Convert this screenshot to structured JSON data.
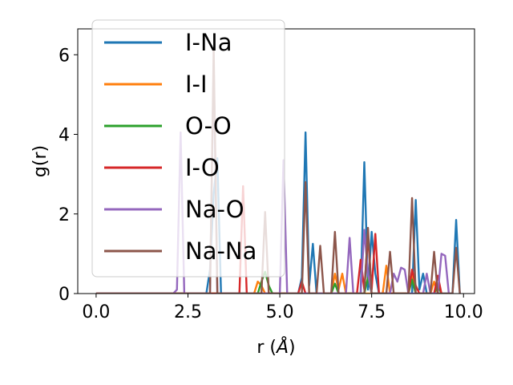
{
  "chart_data": {
    "type": "line",
    "xlabel": "r",
    "xlabel_unit": "Å",
    "ylabel": "g(r)",
    "xlim": [
      -0.5,
      10.3
    ],
    "ylim": [
      0,
      6.65
    ],
    "xticks": [
      0.0,
      2.5,
      5.0,
      7.5,
      10.0
    ],
    "xtick_labels": [
      "0.0",
      "2.5",
      "5.0",
      "7.5",
      "10.0"
    ],
    "yticks": [
      0,
      2,
      4,
      6
    ],
    "ytick_labels": [
      "0",
      "2",
      "4",
      "6"
    ],
    "grid": false,
    "legend_position": "top-left",
    "series": [
      {
        "name": "I-Na",
        "color": "#1f77b4",
        "points": [
          [
            0,
            0
          ],
          [
            3.0,
            0
          ],
          [
            3.1,
            0.6
          ],
          [
            3.2,
            2.5
          ],
          [
            3.3,
            3.4
          ],
          [
            3.4,
            0
          ],
          [
            5.5,
            0
          ],
          [
            5.6,
            0.4
          ],
          [
            5.7,
            4.05
          ],
          [
            5.8,
            0.2
          ],
          [
            5.9,
            1.25
          ],
          [
            6.0,
            0
          ],
          [
            7.2,
            0
          ],
          [
            7.3,
            3.3
          ],
          [
            7.4,
            0.1
          ],
          [
            7.5,
            1.55
          ],
          [
            7.6,
            0.5
          ],
          [
            7.7,
            0
          ],
          [
            8.6,
            0
          ],
          [
            8.7,
            2.35
          ],
          [
            8.8,
            0.1
          ],
          [
            8.9,
            0.5
          ],
          [
            9.0,
            0
          ],
          [
            9.7,
            0
          ],
          [
            9.8,
            1.85
          ],
          [
            9.9,
            0
          ]
        ]
      },
      {
        "name": "I-I",
        "color": "#ff7f0e",
        "points": [
          [
            0,
            0
          ],
          [
            4.3,
            0
          ],
          [
            4.4,
            0.3
          ],
          [
            4.5,
            0.2
          ],
          [
            4.6,
            0
          ],
          [
            6.4,
            0
          ],
          [
            6.5,
            0.5
          ],
          [
            6.6,
            0.1
          ],
          [
            6.7,
            0.5
          ],
          [
            6.8,
            0
          ],
          [
            7.8,
            0
          ],
          [
            7.9,
            0.7
          ],
          [
            8.0,
            0
          ],
          [
            8.5,
            0
          ],
          [
            8.6,
            0.55
          ],
          [
            8.7,
            0
          ],
          [
            9.1,
            0
          ],
          [
            9.2,
            0.3
          ],
          [
            9.3,
            0
          ]
        ]
      },
      {
        "name": "O-O",
        "color": "#2ca02c",
        "points": [
          [
            0,
            0
          ],
          [
            4.4,
            0
          ],
          [
            4.5,
            0.3
          ],
          [
            4.6,
            0.55
          ],
          [
            4.7,
            0.2
          ],
          [
            4.8,
            0
          ],
          [
            6.4,
            0
          ],
          [
            6.5,
            0.25
          ],
          [
            6.6,
            0
          ],
          [
            7.3,
            0
          ],
          [
            7.4,
            0.4
          ],
          [
            7.5,
            0
          ],
          [
            8.5,
            0
          ],
          [
            8.6,
            0.35
          ],
          [
            8.7,
            0
          ],
          [
            9.2,
            0
          ],
          [
            9.3,
            0.2
          ],
          [
            9.4,
            0
          ]
        ]
      },
      {
        "name": "I-O",
        "color": "#d62728",
        "points": [
          [
            0,
            0
          ],
          [
            3.9,
            0
          ],
          [
            4.0,
            2.7
          ],
          [
            4.1,
            0
          ],
          [
            5.5,
            0
          ],
          [
            5.6,
            0.3
          ],
          [
            5.7,
            0
          ],
          [
            7.1,
            0
          ],
          [
            7.2,
            0.85
          ],
          [
            7.3,
            0.1
          ],
          [
            7.4,
            1.45
          ],
          [
            7.5,
            0.1
          ],
          [
            7.6,
            1.5
          ],
          [
            7.7,
            0
          ],
          [
            8.5,
            0
          ],
          [
            8.6,
            0.6
          ],
          [
            8.7,
            0.2
          ],
          [
            8.8,
            0
          ],
          [
            9.2,
            0
          ],
          [
            9.3,
            0.45
          ],
          [
            9.4,
            0
          ]
        ]
      },
      {
        "name": "Na-O",
        "color": "#9467bd",
        "points": [
          [
            0,
            0
          ],
          [
            2.1,
            0
          ],
          [
            2.2,
            0.1
          ],
          [
            2.3,
            4.05
          ],
          [
            2.4,
            0
          ],
          [
            3.1,
            0
          ],
          [
            3.2,
            5.8
          ],
          [
            3.3,
            0
          ],
          [
            5.0,
            0
          ],
          [
            5.1,
            3.35
          ],
          [
            5.2,
            0
          ],
          [
            6.8,
            0
          ],
          [
            6.9,
            1.4
          ],
          [
            7.0,
            0
          ],
          [
            7.2,
            0
          ],
          [
            7.3,
            1.6
          ],
          [
            7.4,
            0.5
          ],
          [
            7.5,
            0
          ],
          [
            8.0,
            0
          ],
          [
            8.1,
            0.5
          ],
          [
            8.2,
            0.3
          ],
          [
            8.3,
            0.65
          ],
          [
            8.4,
            0.6
          ],
          [
            8.5,
            0
          ],
          [
            8.9,
            0
          ],
          [
            9.0,
            0.5
          ],
          [
            9.1,
            0
          ],
          [
            9.3,
            0
          ],
          [
            9.4,
            1.0
          ],
          [
            9.5,
            0.95
          ],
          [
            9.6,
            0
          ]
        ]
      },
      {
        "name": "Na-Na",
        "color": "#8c564b",
        "points": [
          [
            0,
            0
          ],
          [
            3.1,
            0
          ],
          [
            3.2,
            6.15
          ],
          [
            3.3,
            0
          ],
          [
            4.5,
            0
          ],
          [
            4.6,
            2.05
          ],
          [
            4.7,
            0
          ],
          [
            5.6,
            0
          ],
          [
            5.7,
            2.8
          ],
          [
            5.8,
            0
          ],
          [
            6.0,
            0
          ],
          [
            6.1,
            1.2
          ],
          [
            6.2,
            0
          ],
          [
            6.4,
            0
          ],
          [
            6.5,
            1.55
          ],
          [
            6.6,
            0
          ],
          [
            7.3,
            0
          ],
          [
            7.4,
            1.65
          ],
          [
            7.5,
            0
          ],
          [
            7.9,
            0
          ],
          [
            8.0,
            1.05
          ],
          [
            8.1,
            0
          ],
          [
            8.5,
            0
          ],
          [
            8.6,
            2.4
          ],
          [
            8.7,
            0
          ],
          [
            9.1,
            0
          ],
          [
            9.2,
            1.05
          ],
          [
            9.3,
            0
          ],
          [
            9.7,
            0
          ],
          [
            9.8,
            1.15
          ],
          [
            9.9,
            0
          ]
        ]
      }
    ]
  }
}
